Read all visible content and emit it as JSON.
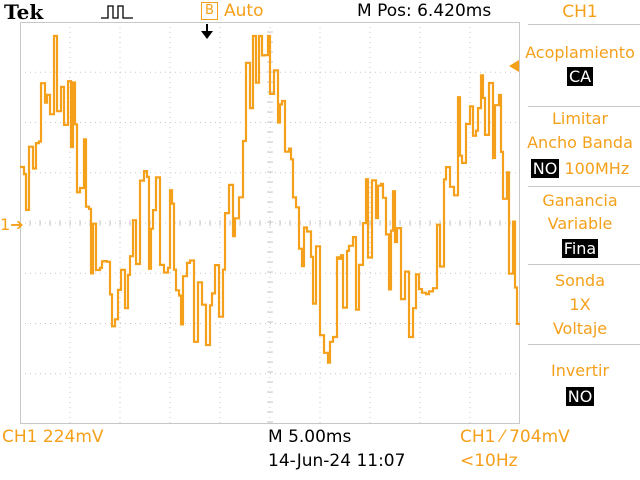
{
  "header": {
    "brand": "Tek",
    "trigger_state_icon": "B",
    "trigger_state": "Auto",
    "position": "M Pos: 6.420ms",
    "channel": "CH1"
  },
  "menu": {
    "coupling_label": "Acoplamiento",
    "coupling_value": "CA",
    "bw_label_1": "Limitar",
    "bw_label_2": "Ancho Banda",
    "bw_no": "NO",
    "bw_freq": "100MHz",
    "gain_label_1": "Ganancia",
    "gain_label_2": "Variable",
    "gain_value": "Fina",
    "probe_label": "Sonda",
    "probe_value_1": "1X",
    "probe_value_2": "Voltaje",
    "invert_label": "Invertir",
    "invert_value": "NO"
  },
  "footer": {
    "ch_scale": "CH1  224mV",
    "timebase": "M 5.00ms",
    "trigger": "CH1  ⁄  704mV",
    "date": "14-Jun-24 11:07",
    "freq": "<10Hz"
  },
  "screen": {
    "ground_marker": "1",
    "trace_color": "#f5a01a",
    "grid_color": "#c8c8c8"
  }
}
